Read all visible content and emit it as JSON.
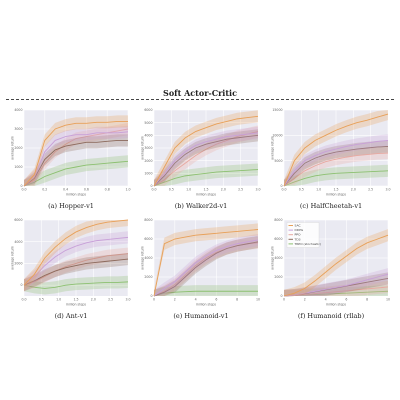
{
  "figure": {
    "heading": "Soft Actor-Critic"
  },
  "colors": {
    "SAC": "#e8a058",
    "DDPG": "#c8a0d8",
    "PPO": "#e8a8a0",
    "TD3": "#8c6a5c",
    "TRPO": "#8cc070"
  },
  "chart_data": [
    {
      "type": "line",
      "caption": "(a) Hopper-v1",
      "xlabel": "million steps",
      "ylabel": "average return",
      "xlim": [
        0,
        1.0
      ],
      "ylim": [
        0,
        4000
      ],
      "xticks": [
        "0.0",
        "0.2",
        "0.4",
        "0.6",
        "0.8",
        "1.0"
      ],
      "yticks": [
        "0",
        "1000",
        "2000",
        "3000",
        "4000"
      ],
      "grid": true,
      "x": [
        0,
        0.1,
        0.2,
        0.3,
        0.4,
        0.5,
        0.6,
        0.7,
        0.8,
        0.9,
        1.0
      ],
      "series": [
        {
          "key": "SAC",
          "values": [
            0,
            600,
            2400,
            3000,
            3200,
            3300,
            3300,
            3350,
            3350,
            3400,
            3400
          ]
        },
        {
          "key": "DDPG",
          "values": [
            0,
            500,
            1800,
            2400,
            2600,
            2700,
            2700,
            2800,
            2800,
            2800,
            2850
          ]
        },
        {
          "key": "PPO",
          "values": [
            0,
            300,
            1200,
            1800,
            2200,
            2500,
            2600,
            2700,
            2800,
            2900,
            3000
          ]
        },
        {
          "key": "TD3",
          "values": [
            0,
            400,
            1400,
            1900,
            2100,
            2200,
            2300,
            2300,
            2350,
            2400,
            2400
          ]
        },
        {
          "key": "TRPO",
          "values": [
            0,
            200,
            500,
            700,
            900,
            1000,
            1100,
            1150,
            1200,
            1250,
            1300
          ]
        }
      ]
    },
    {
      "type": "line",
      "caption": "(b) Walker2d-v1",
      "xlabel": "million steps",
      "ylabel": "average return",
      "xlim": [
        0,
        3.0
      ],
      "ylim": [
        0,
        6000
      ],
      "xticks": [
        "0.0",
        "0.5",
        "1.0",
        "1.5",
        "2.0",
        "2.5",
        "3.0"
      ],
      "yticks": [
        "0",
        "1000",
        "2000",
        "3000",
        "4000",
        "5000",
        "6000"
      ],
      "grid": true,
      "x": [
        0,
        0.3,
        0.6,
        0.9,
        1.2,
        1.5,
        1.8,
        2.1,
        2.4,
        2.7,
        3.0
      ],
      "series": [
        {
          "key": "SAC",
          "values": [
            0,
            1500,
            3000,
            3800,
            4300,
            4600,
            4900,
            5100,
            5300,
            5400,
            5500
          ]
        },
        {
          "key": "DDPG",
          "values": [
            0,
            1000,
            2000,
            2700,
            3200,
            3500,
            3700,
            3900,
            4000,
            4100,
            4200
          ]
        },
        {
          "key": "PPO",
          "values": [
            0,
            500,
            1200,
            1800,
            2400,
            2900,
            3300,
            3600,
            3900,
            4100,
            4300
          ]
        },
        {
          "key": "TD3",
          "values": [
            0,
            800,
            1800,
            2500,
            3000,
            3300,
            3500,
            3700,
            3800,
            3900,
            4000
          ]
        },
        {
          "key": "TRPO",
          "values": [
            0,
            300,
            600,
            800,
            900,
            1000,
            1100,
            1150,
            1200,
            1250,
            1300
          ]
        }
      ]
    },
    {
      "type": "line",
      "caption": "(c) HalfCheetah-v1",
      "xlabel": "million steps",
      "ylabel": "average return",
      "xlim": [
        0,
        3.0
      ],
      "ylim": [
        0,
        15000
      ],
      "xticks": [
        "0.0",
        "0.5",
        "1.0",
        "1.5",
        "2.0",
        "2.5",
        "3.0"
      ],
      "yticks": [
        "0",
        "5000",
        "10000",
        "15000"
      ],
      "grid": true,
      "x": [
        0,
        0.3,
        0.6,
        0.9,
        1.2,
        1.5,
        1.8,
        2.1,
        2.4,
        2.7,
        3.0
      ],
      "series": [
        {
          "key": "SAC",
          "values": [
            0,
            5000,
            7500,
            9000,
            10000,
            11000,
            11800,
            12500,
            13000,
            13600,
            14200
          ]
        },
        {
          "key": "DDPG",
          "values": [
            0,
            3000,
            5000,
            6000,
            6800,
            7300,
            7800,
            8200,
            8500,
            8800,
            9000
          ]
        },
        {
          "key": "PPO",
          "values": [
            0,
            1500,
            3000,
            4000,
            4800,
            5300,
            5700,
            6000,
            6200,
            6400,
            6500
          ]
        },
        {
          "key": "TD3",
          "values": [
            0,
            2500,
            4500,
            5500,
            6200,
            6700,
            7000,
            7300,
            7500,
            7700,
            7800
          ]
        },
        {
          "key": "TRPO",
          "values": [
            0,
            800,
            1500,
            2000,
            2300,
            2500,
            2600,
            2700,
            2800,
            2900,
            3000
          ]
        }
      ]
    },
    {
      "type": "line",
      "caption": "(d) Ant-v1",
      "xlabel": "million steps",
      "ylabel": "average return",
      "xlim": [
        0,
        3.0
      ],
      "ylim": [
        -1000,
        6000
      ],
      "xticks": [
        "0.0",
        "0.5",
        "1.0",
        "1.5",
        "2.0",
        "2.5",
        "3.0"
      ],
      "yticks": [
        "0",
        "2000",
        "4000",
        "6000"
      ],
      "grid": true,
      "x": [
        0,
        0.3,
        0.6,
        0.9,
        1.2,
        1.5,
        1.8,
        2.1,
        2.4,
        2.7,
        3.0
      ],
      "series": [
        {
          "key": "SAC",
          "values": [
            0,
            1000,
            2500,
            3500,
            4300,
            4900,
            5300,
            5600,
            5800,
            5900,
            6000
          ]
        },
        {
          "key": "DDPG",
          "values": [
            0,
            800,
            1800,
            2600,
            3200,
            3600,
            3900,
            4100,
            4200,
            4300,
            4400
          ]
        },
        {
          "key": "PPO",
          "values": [
            0,
            300,
            800,
            1300,
            1700,
            2000,
            2300,
            2500,
            2700,
            2800,
            2900
          ]
        },
        {
          "key": "TD3",
          "values": [
            0,
            400,
            900,
            1300,
            1600,
            1800,
            2000,
            2100,
            2200,
            2300,
            2400
          ]
        },
        {
          "key": "TRPO",
          "values": [
            0,
            -200,
            -300,
            -200,
            0,
            100,
            150,
            200,
            250,
            250,
            300
          ]
        }
      ]
    },
    {
      "type": "line",
      "caption": "(e) Humanoid-v1",
      "xlabel": "million steps",
      "ylabel": "average return",
      "xlim": [
        0,
        10
      ],
      "ylim": [
        0,
        8000
      ],
      "xticks": [
        "0",
        "2",
        "4",
        "6",
        "8",
        "10"
      ],
      "yticks": [
        "0",
        "2000",
        "4000",
        "6000",
        "8000"
      ],
      "grid": true,
      "x": [
        0,
        1,
        2,
        3,
        4,
        5,
        6,
        7,
        8,
        9,
        10
      ],
      "series": [
        {
          "key": "SAC",
          "values": [
            0,
            5500,
            6000,
            6200,
            6400,
            6500,
            6600,
            6700,
            6800,
            6900,
            7000
          ]
        },
        {
          "key": "DDPG",
          "values": [
            0,
            800,
            1500,
            2500,
            3500,
            4200,
            4800,
            5200,
            5500,
            5700,
            5900
          ]
        },
        {
          "key": "PPO",
          "values": [
            0,
            500,
            1200,
            2200,
            3200,
            4000,
            4600,
            5000,
            5300,
            5500,
            5600
          ]
        },
        {
          "key": "TD3",
          "values": [
            0,
            400,
            1000,
            2000,
            3000,
            3800,
            4500,
            5000,
            5300,
            5500,
            5700
          ]
        },
        {
          "key": "TRPO",
          "values": [
            0,
            300,
            400,
            450,
            500,
            500,
            500,
            500,
            500,
            500,
            500
          ]
        }
      ]
    },
    {
      "type": "line",
      "caption": "(f) Humanoid (rllab)",
      "xlabel": "million steps",
      "ylabel": "average return",
      "xlim": [
        0,
        10
      ],
      "ylim": [
        0,
        8000
      ],
      "xticks": [
        "0",
        "2",
        "4",
        "6",
        "8",
        "10"
      ],
      "yticks": [
        "0",
        "2000",
        "4000",
        "6000",
        "8000"
      ],
      "grid": true,
      "legend": {
        "position": "top-left",
        "entries": [
          "SAC",
          "DDPG",
          "PPO",
          "TD3",
          "TRPO (stochastic)"
        ]
      },
      "x": [
        0,
        1,
        2,
        3,
        4,
        5,
        6,
        7,
        8,
        9,
        10
      ],
      "series": [
        {
          "key": "SAC",
          "name": "SAC",
          "values": [
            0,
            300,
            800,
            1600,
            2500,
            3400,
            4200,
            5000,
            5600,
            6000,
            6400
          ]
        },
        {
          "key": "DDPG",
          "name": "DDPG",
          "values": [
            0,
            100,
            300,
            500,
            700,
            900,
            1100,
            1400,
            1700,
            2000,
            2300
          ]
        },
        {
          "key": "PPO",
          "name": "PPO",
          "values": [
            0,
            50,
            150,
            250,
            350,
            450,
            550,
            650,
            750,
            850,
            950
          ]
        },
        {
          "key": "TD3",
          "name": "TD3",
          "values": [
            0,
            100,
            250,
            450,
            650,
            850,
            1050,
            1250,
            1450,
            1650,
            1850
          ]
        },
        {
          "key": "TRPO",
          "name": "TRPO (stochastic)",
          "values": [
            0,
            50,
            100,
            150,
            200,
            250,
            300,
            350,
            400,
            450,
            500
          ]
        }
      ]
    }
  ]
}
